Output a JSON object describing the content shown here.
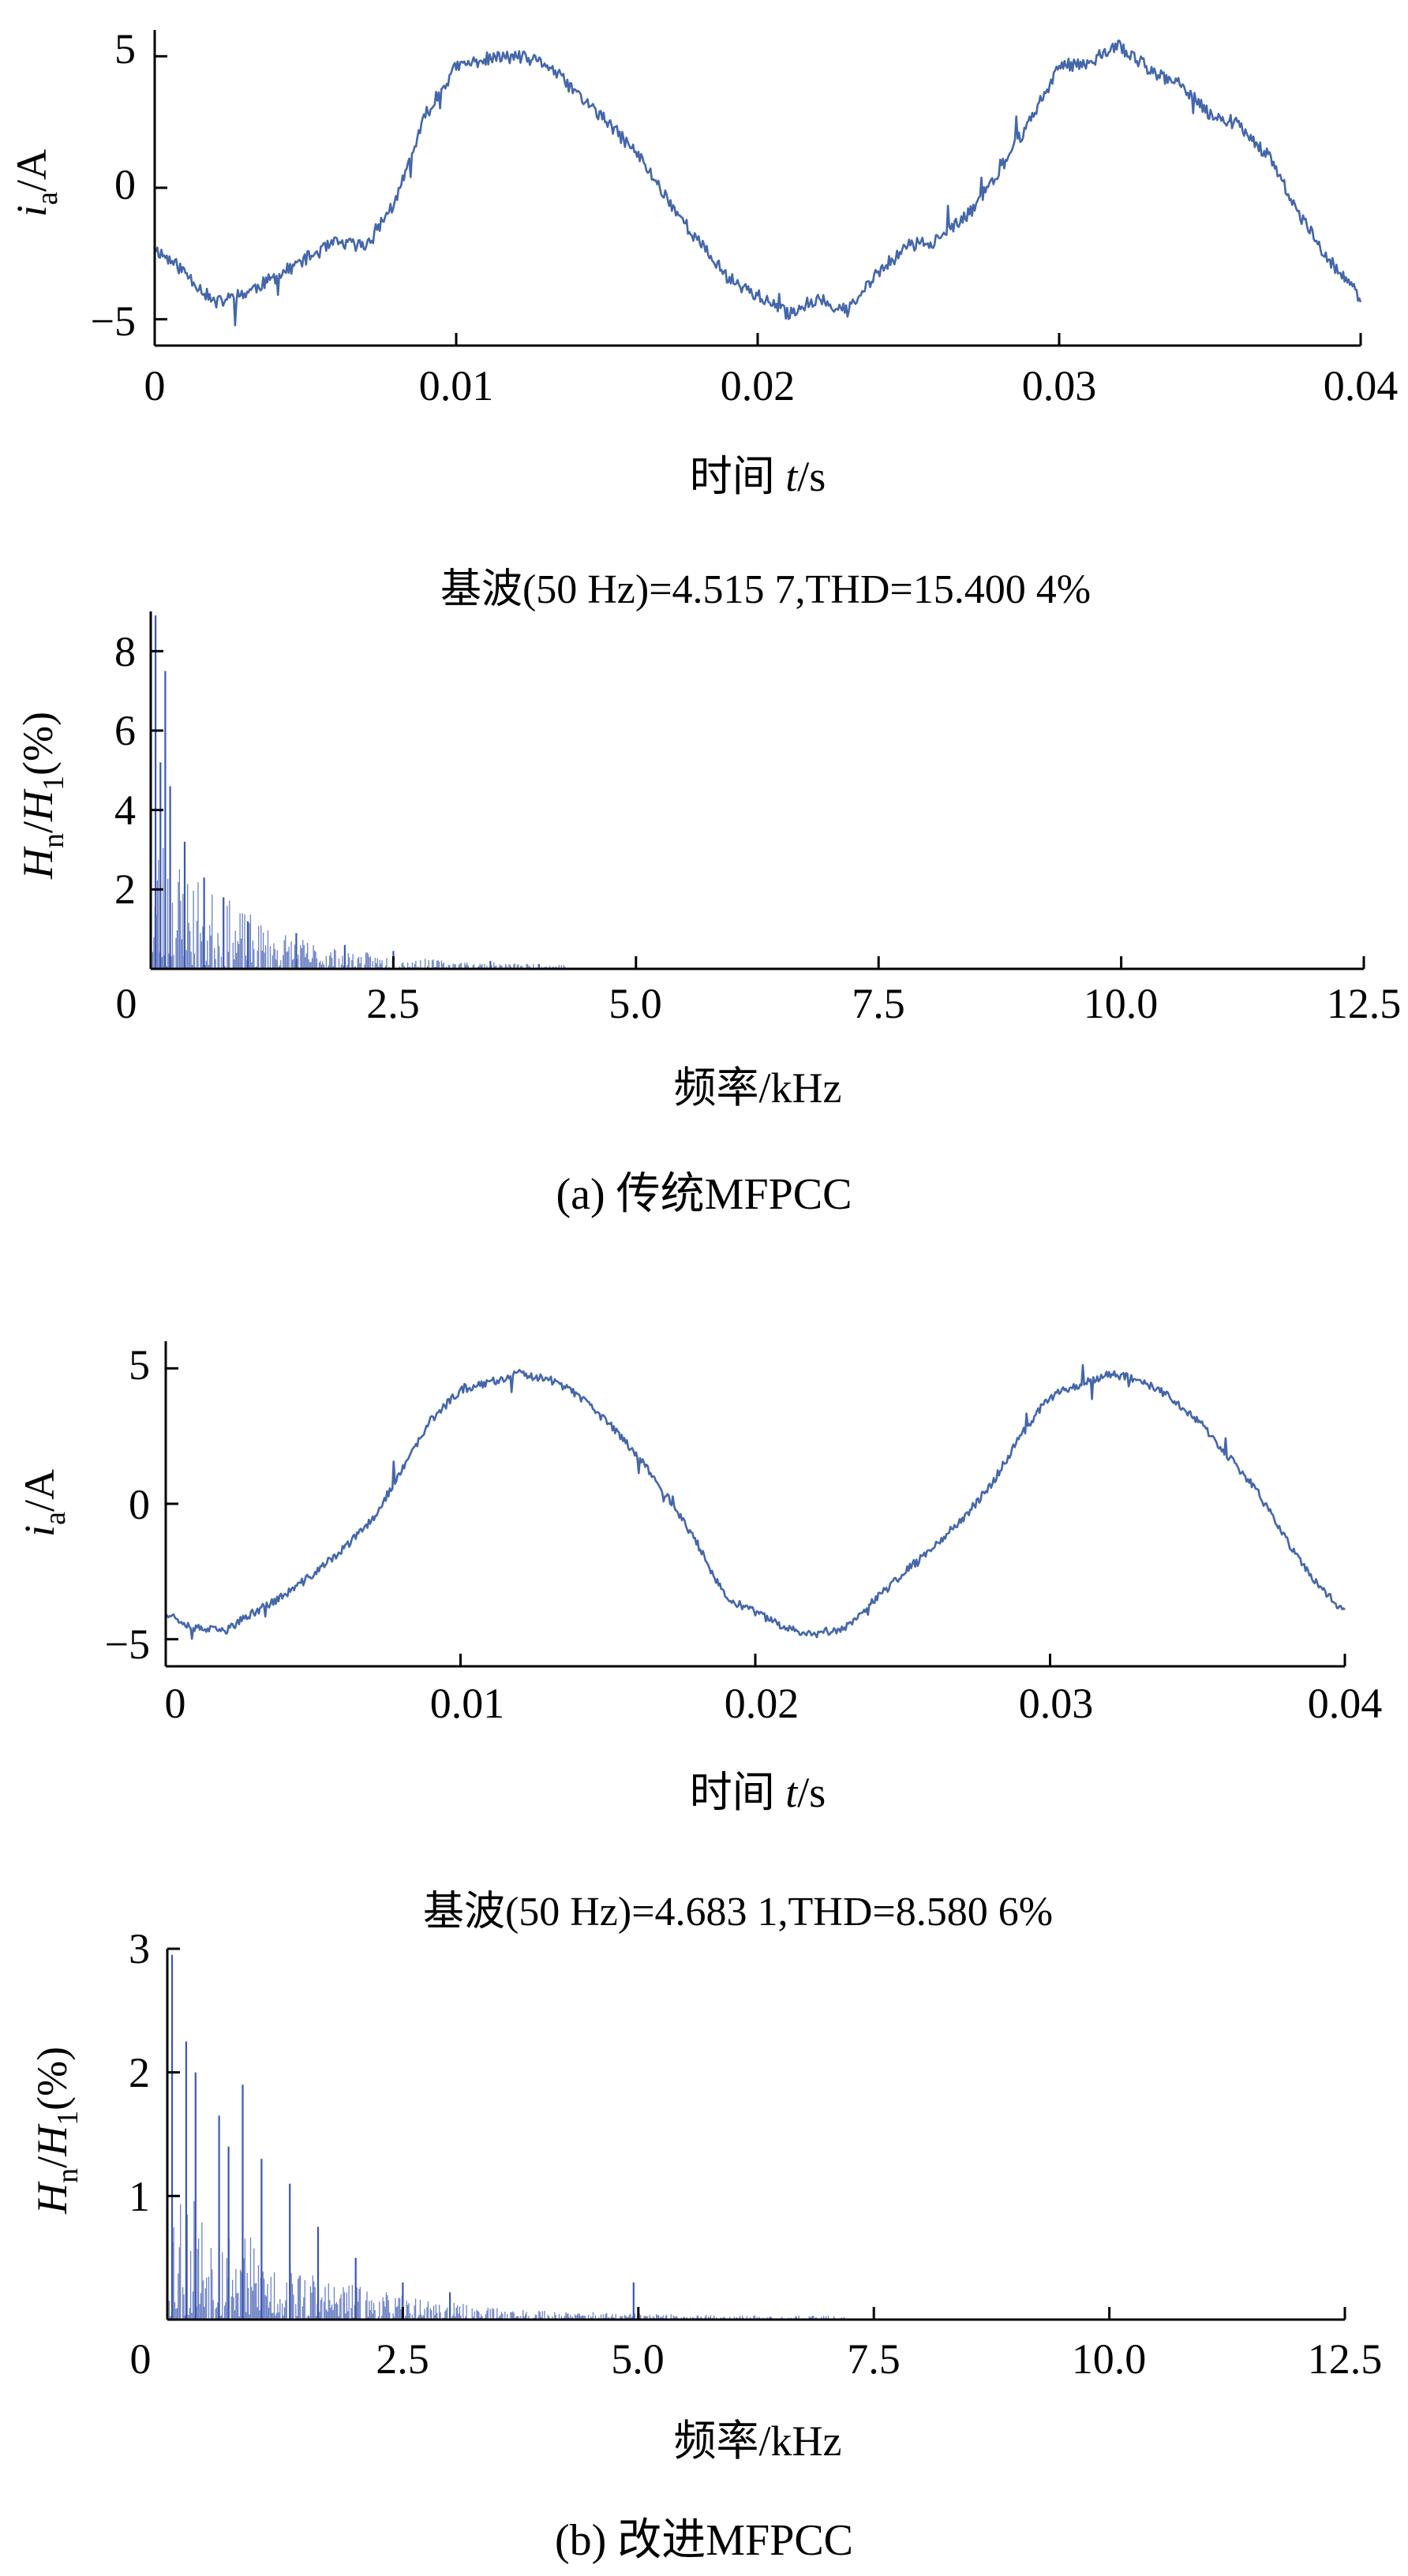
{
  "colors": {
    "waveform": "#4466aa",
    "spectrum": "#3b57b0",
    "axis": "#000000"
  },
  "panel_a": {
    "caption": "(a) 传统MFPCC",
    "time_plot": {
      "ylabel_main": "i",
      "ylabel_sub": "a",
      "ylabel_tail": "/A",
      "xlabel_main": "时间 ",
      "xlabel_var": "t",
      "xlabel_tail": "/s",
      "xtick_labels": [
        "0",
        "0.01",
        "0.02",
        "0.03",
        "0.04"
      ],
      "ytick_labels": [
        "5",
        "0",
        "−5"
      ]
    },
    "spectrum_plot": {
      "title": "基波(50 Hz)=4.515 7,THD=15.400 4%",
      "ylabel_h": "H",
      "ylabel_n": "n",
      "ylabel_mid": "/",
      "ylabel_h2": "H",
      "ylabel_1": "1",
      "ylabel_tail": "(%)",
      "xlabel": "频率/kHz",
      "xtick_labels": [
        "0",
        "2.5",
        "5.0",
        "7.5",
        "10.0",
        "12.5"
      ],
      "ytick_labels": [
        "8",
        "6",
        "4",
        "2"
      ]
    }
  },
  "panel_b": {
    "caption": "(b) 改进MFPCC",
    "time_plot": {
      "ylabel_main": "i",
      "ylabel_sub": "a",
      "ylabel_tail": "/A",
      "xlabel_main": "时间 ",
      "xlabel_var": "t",
      "xlabel_tail": "/s",
      "xtick_labels": [
        "0",
        "0.01",
        "0.02",
        "0.03",
        "0.04"
      ],
      "ytick_labels": [
        "5",
        "0",
        "−5"
      ]
    },
    "spectrum_plot": {
      "title": "基波(50 Hz)=4.683 1,THD=8.580 6%",
      "ylabel_h": "H",
      "ylabel_n": "n",
      "ylabel_mid": "/",
      "ylabel_h2": "H",
      "ylabel_1": "1",
      "ylabel_tail": "(%)",
      "xlabel": "频率/kHz",
      "xtick_labels": [
        "0",
        "2.5",
        "5.0",
        "7.5",
        "10.0",
        "12.5"
      ],
      "ytick_labels": [
        "3",
        "2",
        "1"
      ]
    }
  },
  "chart_data": [
    {
      "type": "line",
      "panel": "(a)",
      "title": "",
      "xlabel": "时间 t/s",
      "ylabel": "ia/A",
      "xlim": [
        0,
        0.04
      ],
      "ylim": [
        -6,
        6
      ],
      "xticks": [
        0,
        0.01,
        0.02,
        0.03,
        0.04
      ],
      "yticks": [
        5,
        0,
        -5
      ],
      "series": [
        {
          "x": [
            0,
            0.001,
            0.002,
            0.003,
            0.004,
            0.005,
            0.006,
            0.007,
            0.008,
            0.009,
            0.01,
            0.011,
            0.012,
            0.013,
            0.014,
            0.015,
            0.016,
            0.017,
            0.018,
            0.019,
            0.02,
            0.021,
            0.022,
            0.023,
            0.024,
            0.025,
            0.026,
            0.027,
            0.028,
            0.029,
            0.03,
            0.031,
            0.032,
            0.033,
            0.034,
            0.035,
            0.036,
            0.037,
            0.038,
            0.039,
            0.04
          ],
          "y": [
            -2.3,
            -3.2,
            -4.4,
            -4.0,
            -3.4,
            -2.7,
            -2.1,
            -2.2,
            -0.5,
            2.8,
            4.6,
            4.9,
            5.0,
            4.7,
            3.6,
            2.5,
            1.3,
            -0.4,
            -2.0,
            -3.4,
            -4.1,
            -4.8,
            -4.2,
            -4.7,
            -3.2,
            -2.2,
            -2.0,
            -1.0,
            0.6,
            2.5,
            4.6,
            4.8,
            5.4,
            4.5,
            3.9,
            2.8,
            2.4,
            1.1,
            -1.1,
            -2.8,
            -4.2
          ],
          "jitter": 0.25
        }
      ]
    },
    {
      "type": "bar",
      "panel": "(a)",
      "title": "基波(50 Hz)=4.515 7,THD=15.400 4%",
      "xlabel": "频率/kHz",
      "ylabel": "Hn/H1(%)",
      "xlim": [
        0,
        12.5
      ],
      "ylim": [
        0,
        9
      ],
      "xticks": [
        0,
        2.5,
        5.0,
        7.5,
        10.0,
        12.5
      ],
      "yticks": [
        2,
        4,
        6,
        8
      ],
      "peaks": [
        {
          "x": 0.05,
          "y": 8.9
        },
        {
          "x": 0.15,
          "y": 7.5
        },
        {
          "x": 0.1,
          "y": 5.2
        },
        {
          "x": 0.2,
          "y": 4.6
        },
        {
          "x": 0.35,
          "y": 3.2
        },
        {
          "x": 0.55,
          "y": 2.3
        },
        {
          "x": 0.75,
          "y": 1.8
        },
        {
          "x": 1.0,
          "y": 1.2
        },
        {
          "x": 1.5,
          "y": 0.9
        },
        {
          "x": 2.0,
          "y": 0.6
        },
        {
          "x": 2.5,
          "y": 0.45
        },
        {
          "x": 3.5,
          "y": 0.2
        },
        {
          "x": 4.0,
          "y": 0.12
        }
      ],
      "envelope_decay_khz": 0.9,
      "noise_floor_extent_khz": 4.3
    },
    {
      "type": "line",
      "panel": "(b)",
      "title": "",
      "xlabel": "时间 t/s",
      "ylabel": "ia/A",
      "xlim": [
        0,
        0.04
      ],
      "ylim": [
        -6,
        6
      ],
      "xticks": [
        0,
        0.01,
        0.02,
        0.03,
        0.04
      ],
      "yticks": [
        5,
        0,
        -5
      ],
      "series": [
        {
          "x": [
            0,
            0.001,
            0.002,
            0.003,
            0.004,
            0.005,
            0.006,
            0.007,
            0.008,
            0.009,
            0.01,
            0.011,
            0.012,
            0.013,
            0.014,
            0.015,
            0.016,
            0.017,
            0.018,
            0.019,
            0.02,
            0.021,
            0.022,
            0.023,
            0.024,
            0.025,
            0.026,
            0.027,
            0.028,
            0.029,
            0.03,
            0.031,
            0.032,
            0.033,
            0.034,
            0.035,
            0.036,
            0.037,
            0.038,
            0.039,
            0.04
          ],
          "y": [
            -4.0,
            -4.6,
            -4.7,
            -4.0,
            -3.4,
            -2.6,
            -1.7,
            -0.6,
            1.2,
            3.1,
            4.2,
            4.5,
            4.8,
            4.6,
            4.0,
            3.0,
            1.8,
            0.3,
            -1.4,
            -3.5,
            -4.0,
            -4.6,
            -4.8,
            -4.6,
            -3.6,
            -2.6,
            -1.6,
            -0.6,
            0.7,
            2.5,
            4.0,
            4.4,
            4.8,
            4.6,
            4.0,
            3.1,
            1.8,
            0.5,
            -1.3,
            -2.9,
            -4.0
          ],
          "jitter": 0.15
        }
      ]
    },
    {
      "type": "bar",
      "panel": "(b)",
      "title": "基波(50 Hz)=4.683 1,THD=8.580 6%",
      "xlabel": "频率/kHz",
      "ylabel": "Hn/H1(%)",
      "xlim": [
        0,
        12.5
      ],
      "ylim": [
        0,
        3
      ],
      "xticks": [
        0,
        2.5,
        5.0,
        7.5,
        10.0,
        12.5
      ],
      "yticks": [
        1,
        2,
        3
      ],
      "peaks": [
        {
          "x": 0.05,
          "y": 2.95
        },
        {
          "x": 0.2,
          "y": 2.25
        },
        {
          "x": 0.3,
          "y": 2.0
        },
        {
          "x": 0.55,
          "y": 1.65
        },
        {
          "x": 0.65,
          "y": 1.4
        },
        {
          "x": 0.8,
          "y": 1.9
        },
        {
          "x": 1.0,
          "y": 1.3
        },
        {
          "x": 1.3,
          "y": 1.1
        },
        {
          "x": 1.6,
          "y": 0.75
        },
        {
          "x": 2.0,
          "y": 0.5
        },
        {
          "x": 2.5,
          "y": 0.3
        },
        {
          "x": 3.0,
          "y": 0.22
        },
        {
          "x": 4.95,
          "y": 0.3
        }
      ],
      "envelope_decay_khz": 1.2,
      "noise_floor_extent_khz": 7.2
    }
  ]
}
